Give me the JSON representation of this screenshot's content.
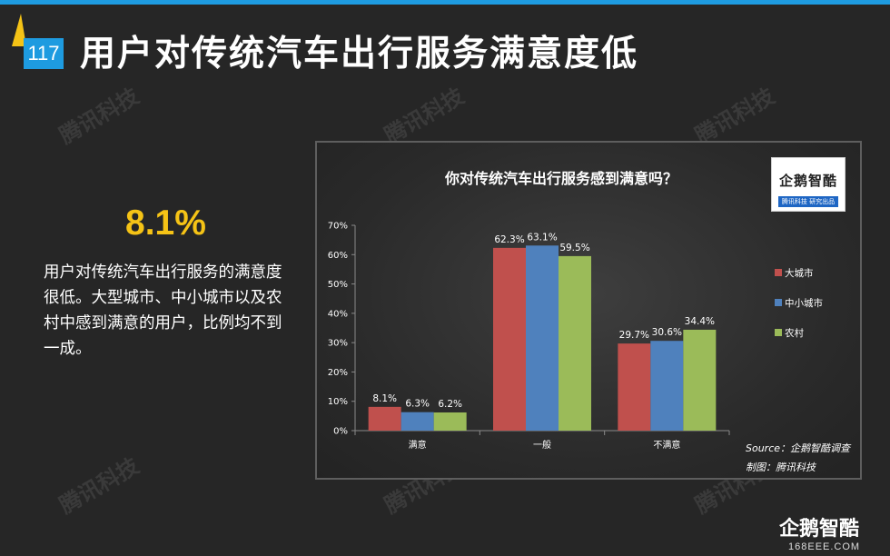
{
  "header": {
    "page_number": "117",
    "title": "用户对传统汽车出行服务满意度低"
  },
  "watermark_text": "腾讯科技",
  "left_panel": {
    "highlight_value": "8.1%",
    "description": "用户对传统汽车出行服务的满意度很低。大型城市、中小城市以及农村中感到满意的用户，比例均不到一成。"
  },
  "chart_logo": {
    "name": "企鹅智酷",
    "subtitle": "腾讯科技 研究出品"
  },
  "footer": {
    "brand": "企鹅智酷",
    "url": "168EEE.COM"
  },
  "chart_data": {
    "type": "bar",
    "title": "你对传统汽车出行服务感到满意吗？",
    "categories": [
      "满意",
      "一般",
      "不满意"
    ],
    "series": [
      {
        "name": "大城市",
        "values": [
          8.1,
          62.3,
          29.7
        ],
        "labels": [
          "8.1%",
          "62.3%",
          "29.7%"
        ],
        "color": "#c0504d"
      },
      {
        "name": "中小城市",
        "values": [
          6.3,
          63.1,
          30.6
        ],
        "labels": [
          "6.3%",
          "63.1%",
          "30.6%"
        ],
        "color": "#4f81bd"
      },
      {
        "name": "农村",
        "values": [
          6.2,
          59.5,
          34.4
        ],
        "labels": [
          "6.2%",
          "59.5%",
          "34.4%"
        ],
        "color": "#9bbb59"
      }
    ],
    "ylim": [
      0,
      70
    ],
    "yticks": [
      "0%",
      "10%",
      "20%",
      "30%",
      "40%",
      "50%",
      "60%",
      "70%"
    ],
    "grid": false,
    "legend_position": "right",
    "source": "Source：企鹅智酷调查",
    "maker": "制图：腾讯科技"
  }
}
